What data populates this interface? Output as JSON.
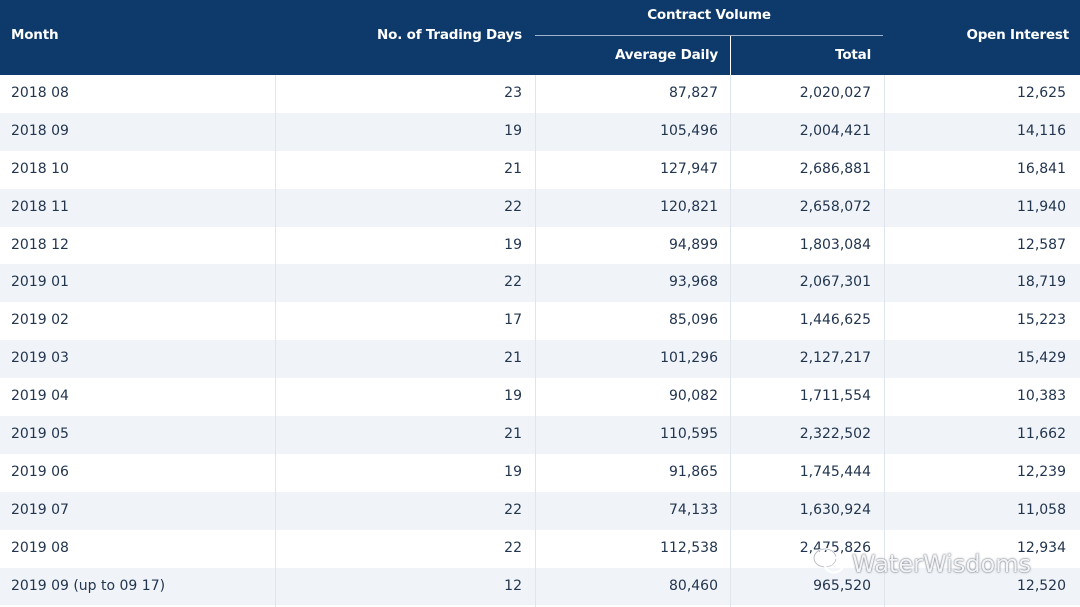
{
  "header": {
    "month": "Month",
    "trading_days": "No. of Trading Days",
    "contract_volume": "Contract Volume",
    "average_daily": "Average Daily",
    "total": "Total",
    "open_interest": "Open Interest"
  },
  "rows": [
    {
      "month": "2018 08",
      "days": "23",
      "avg": "87,827",
      "total": "2,020,027",
      "oi": "12,625"
    },
    {
      "month": "2018 09",
      "days": "19",
      "avg": "105,496",
      "total": "2,004,421",
      "oi": "14,116"
    },
    {
      "month": "2018 10",
      "days": "21",
      "avg": "127,947",
      "total": "2,686,881",
      "oi": "16,841"
    },
    {
      "month": "2018 11",
      "days": "22",
      "avg": "120,821",
      "total": "2,658,072",
      "oi": "11,940"
    },
    {
      "month": "2018 12",
      "days": "19",
      "avg": "94,899",
      "total": "1,803,084",
      "oi": "12,587"
    },
    {
      "month": "2019 01",
      "days": "22",
      "avg": "93,968",
      "total": "2,067,301",
      "oi": "18,719"
    },
    {
      "month": "2019 02",
      "days": "17",
      "avg": "85,096",
      "total": "1,446,625",
      "oi": "15,223"
    },
    {
      "month": "2019 03",
      "days": "21",
      "avg": "101,296",
      "total": "2,127,217",
      "oi": "15,429"
    },
    {
      "month": "2019 04",
      "days": "19",
      "avg": "90,082",
      "total": "1,711,554",
      "oi": "10,383"
    },
    {
      "month": "2019 05",
      "days": "21",
      "avg": "110,595",
      "total": "2,322,502",
      "oi": "11,662"
    },
    {
      "month": "2019 06",
      "days": "19",
      "avg": "91,865",
      "total": "1,745,444",
      "oi": "12,239"
    },
    {
      "month": "2019 07",
      "days": "22",
      "avg": "74,133",
      "total": "1,630,924",
      "oi": "11,058"
    },
    {
      "month": "2019 08",
      "days": "22",
      "avg": "112,538",
      "total": "2,475,826",
      "oi": "12,934"
    },
    {
      "month": "2019 09 (up to 09 17)",
      "days": "12",
      "avg": "80,460",
      "total": "965,520",
      "oi": "12,520"
    }
  ],
  "watermark": {
    "text": "WaterWisdoms",
    "icon": "wechat-icon"
  },
  "colors": {
    "header_bg": "#0d3a6b",
    "header_text": "#ffffff",
    "row_alt_bg": "#f0f4f8",
    "row_text": "#22354f",
    "grid_line": "#dfe5ec"
  }
}
